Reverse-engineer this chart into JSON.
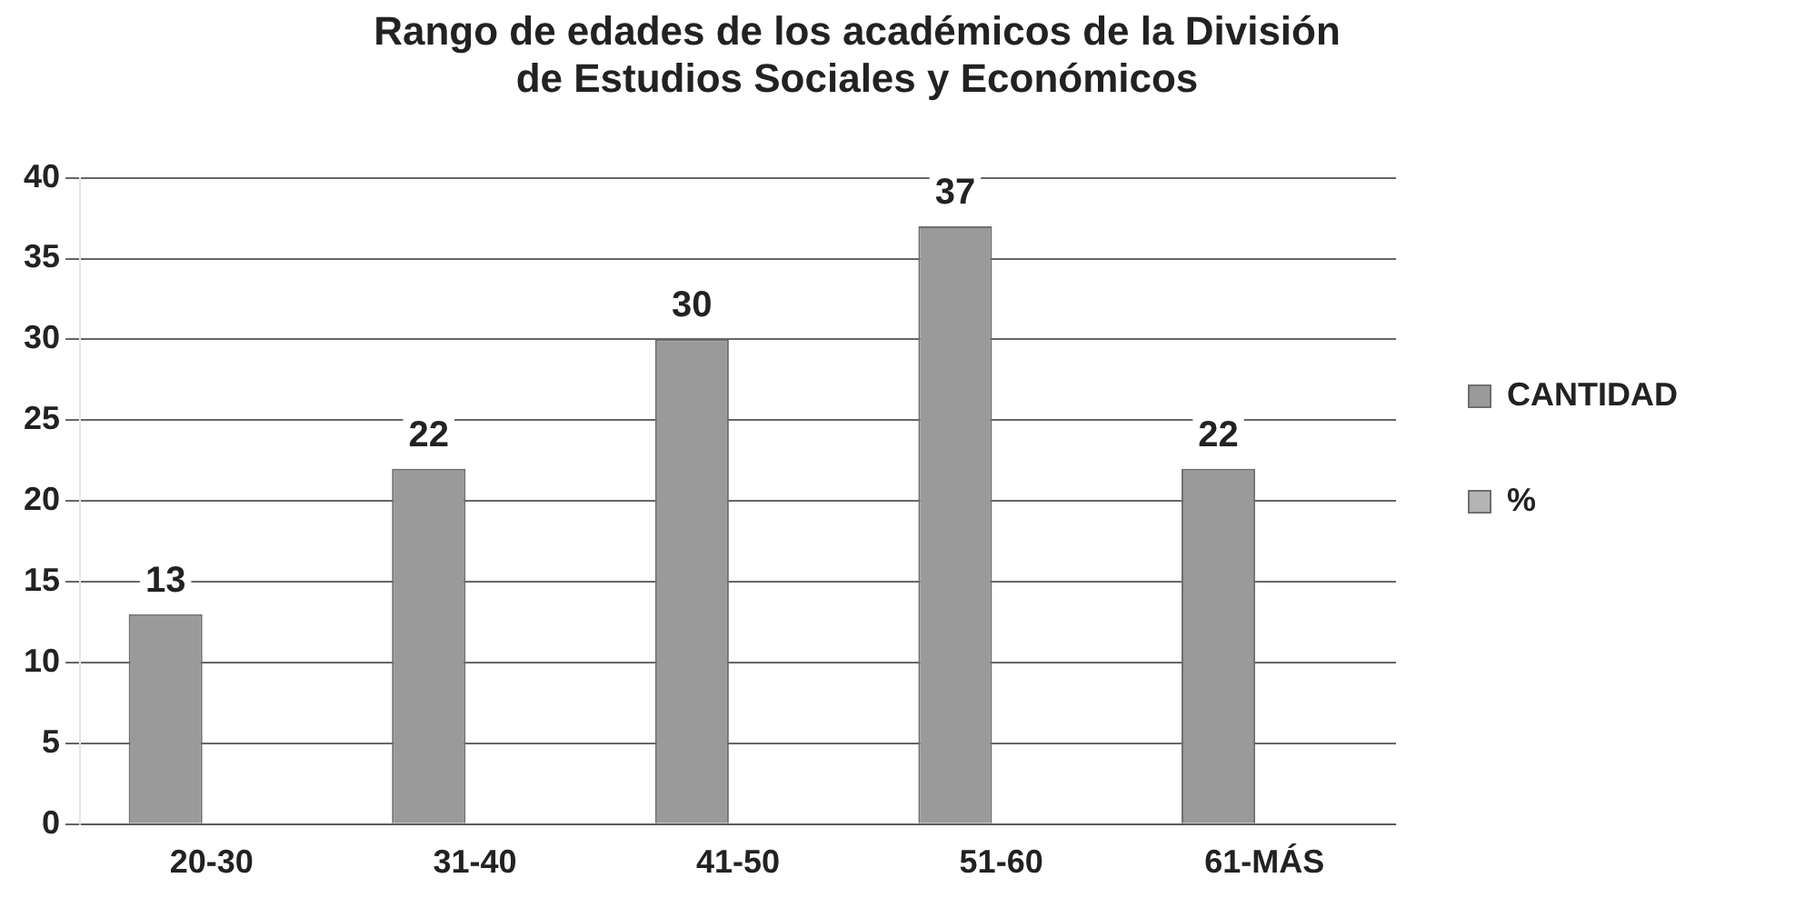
{
  "chart_data": {
    "type": "bar",
    "title": [
      "Rango de edades de los académicos de la División",
      "de Estudios Sociales y Económicos"
    ],
    "categories": [
      "20-30",
      "31-40",
      "41-50",
      "51-60",
      "61-MÁS"
    ],
    "series": [
      {
        "name": "CANTIDAD",
        "color": "#9a9a9a",
        "values": [
          13,
          22,
          30,
          37,
          22
        ],
        "value_labels": [
          "13",
          "22",
          "30",
          "37",
          "22"
        ]
      },
      {
        "name": "%",
        "color": "#b4b4b4",
        "values": [
          0,
          0,
          0,
          0,
          0
        ]
      }
    ],
    "ylim": [
      0,
      40
    ],
    "yticks": [
      0,
      5,
      10,
      15,
      20,
      25,
      30,
      35,
      40
    ],
    "grid": "y",
    "legend": "right"
  }
}
